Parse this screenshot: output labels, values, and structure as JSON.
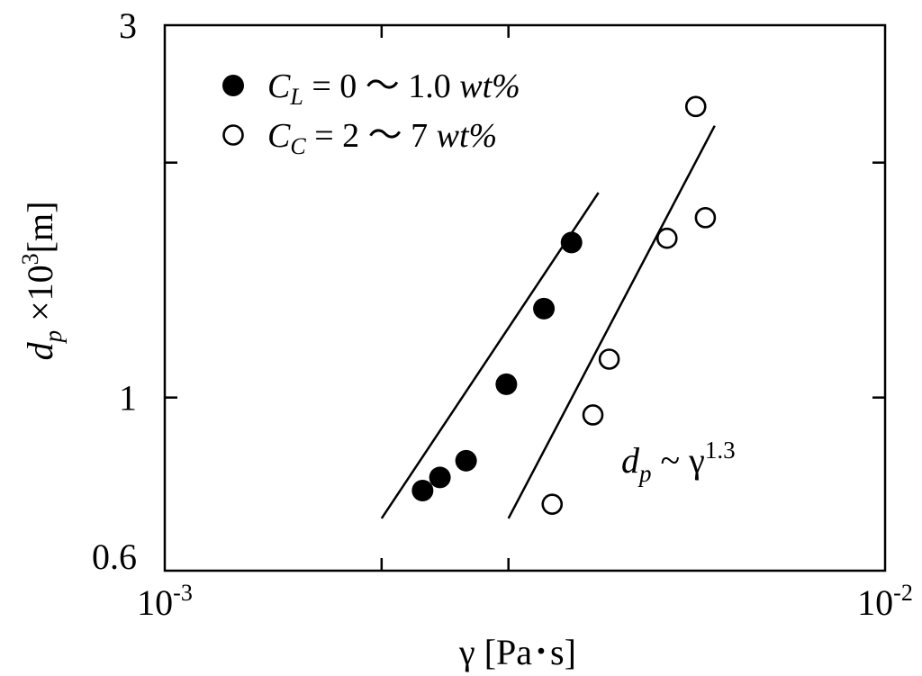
{
  "chart_data": {
    "type": "scatter",
    "xscale": "log",
    "yscale": "log",
    "xlim": [
      0.001,
      0.01
    ],
    "ylim": [
      0.6,
      3
    ],
    "xlabel": "γ [Pa･s]",
    "ylabel": "d_p ×10^3[m]",
    "x_tick_labels": [
      {
        "value": 0.001,
        "base": "10",
        "exp": "-3"
      },
      {
        "value": 0.01,
        "base": "10",
        "exp": "-2"
      }
    ],
    "x_minor_ticks": [
      0.002,
      0.003
    ],
    "y_tick_labels": [
      {
        "value": 3,
        "text": "3"
      },
      {
        "value": 1,
        "text": "1"
      },
      {
        "value": 0.6,
        "text": "0.6"
      }
    ],
    "y_minor_ticks": [
      2
    ],
    "series": [
      {
        "name": "C_L = 0 ～ 1.0 wt%",
        "marker": "filled-circle",
        "color": "#000000",
        "points": [
          [
            0.00228,
            0.76
          ],
          [
            0.00241,
            0.79
          ],
          [
            0.00262,
            0.83
          ],
          [
            0.00298,
            1.04
          ],
          [
            0.00336,
            1.3
          ],
          [
            0.00367,
            1.58
          ]
        ],
        "fit": [
          [
            0.002,
            0.7
          ],
          [
            0.004,
            1.83
          ]
        ]
      },
      {
        "name": "C_C = 2 ～ 7 wt%",
        "marker": "open-circle",
        "color": "#000000",
        "points": [
          [
            0.00345,
            0.73
          ],
          [
            0.00393,
            0.95
          ],
          [
            0.00414,
            1.12
          ],
          [
            0.00498,
            1.6
          ],
          [
            0.00546,
            2.36
          ],
          [
            0.00563,
            1.7
          ]
        ],
        "fit": [
          [
            0.003,
            0.7
          ],
          [
            0.0058,
            2.23
          ]
        ]
      }
    ],
    "annotation": {
      "base": "d",
      "sub": "p",
      "mid": " ~ γ",
      "sup": "1.3"
    },
    "grid": false,
    "legend_position": "top-left"
  }
}
